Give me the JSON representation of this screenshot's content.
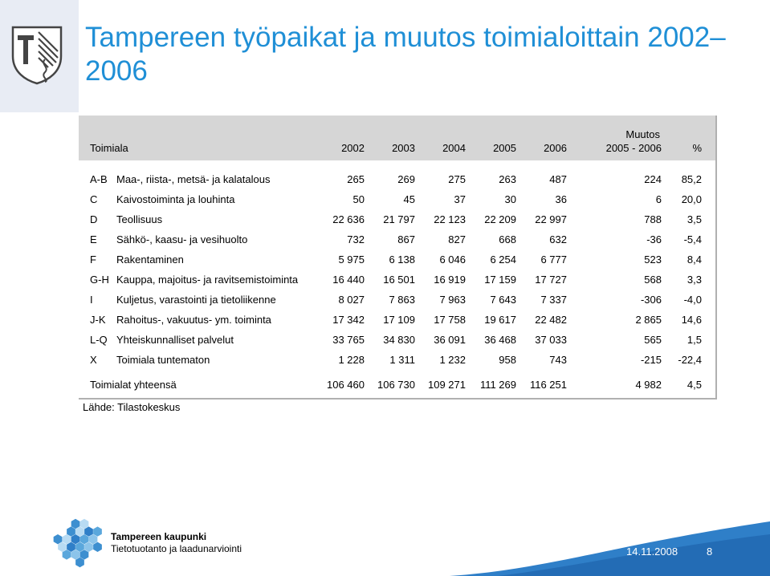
{
  "title": "Tampereen työpaikat ja muutos toimialoittain 2002–2006",
  "table": {
    "header": {
      "toimiala": "Toimiala",
      "years": [
        "2002",
        "2003",
        "2004",
        "2005",
        "2006"
      ],
      "change_top": "Muutos",
      "change_bottom": "2005 - 2006",
      "percent": "%"
    },
    "rows": [
      {
        "code": "A-B",
        "name": "Maa-, riista-, metsä- ja kalatalous",
        "values": [
          "265",
          "269",
          "275",
          "263",
          "487"
        ],
        "change": "224",
        "pct": "85,2"
      },
      {
        "code": "C",
        "name": "Kaivostoiminta ja louhinta",
        "values": [
          "50",
          "45",
          "37",
          "30",
          "36"
        ],
        "change": "6",
        "pct": "20,0"
      },
      {
        "code": "D",
        "name": "Teollisuus",
        "values": [
          "22 636",
          "21 797",
          "22 123",
          "22 209",
          "22 997"
        ],
        "change": "788",
        "pct": "3,5"
      },
      {
        "code": "E",
        "name": "Sähkö-, kaasu- ja vesihuolto",
        "values": [
          "732",
          "867",
          "827",
          "668",
          "632"
        ],
        "change": "-36",
        "pct": "-5,4"
      },
      {
        "code": "F",
        "name": "Rakentaminen",
        "values": [
          "5 975",
          "6 138",
          "6 046",
          "6 254",
          "6 777"
        ],
        "change": "523",
        "pct": "8,4"
      },
      {
        "code": "G-H",
        "name": "Kauppa, majoitus- ja ravitsemistoiminta",
        "values": [
          "16 440",
          "16 501",
          "16 919",
          "17 159",
          "17 727"
        ],
        "change": "568",
        "pct": "3,3"
      },
      {
        "code": "I",
        "name": "Kuljetus, varastointi ja tietoliikenne",
        "values": [
          "8 027",
          "7 863",
          "7 963",
          "7 643",
          "7 337"
        ],
        "change": "-306",
        "pct": "-4,0"
      },
      {
        "code": "J-K",
        "name": "Rahoitus-, vakuutus- ym. toiminta",
        "values": [
          "17 342",
          "17 109",
          "17 758",
          "19 617",
          "22 482"
        ],
        "change": "2 865",
        "pct": "14,6"
      },
      {
        "code": "L-Q",
        "name": "Yhteiskunnalliset palvelut",
        "values": [
          "33 765",
          "34 830",
          "36 091",
          "36 468",
          "37 033"
        ],
        "change": "565",
        "pct": "1,5"
      },
      {
        "code": "X",
        "name": "Toimiala tuntematon",
        "values": [
          "1 228",
          "1 311",
          "1 232",
          "958",
          "743"
        ],
        "change": "-215",
        "pct": "-22,4"
      }
    ],
    "total": {
      "name": "Toimialat yhteensä",
      "values": [
        "106 460",
        "106 730",
        "109 271",
        "111 269",
        "116 251"
      ],
      "change": "4 982",
      "pct": "4,5"
    }
  },
  "source": "Lähde: Tilastokeskus",
  "footer": {
    "org_name": "Tampereen kaupunki",
    "org_unit": "Tietotuotanto ja laadunarviointi",
    "date": "14.11.2008",
    "page": "8"
  },
  "colors": {
    "title": "#1f8fd6",
    "header_band": "#d6d6d6",
    "footer_wave": "#2f7fc8"
  }
}
